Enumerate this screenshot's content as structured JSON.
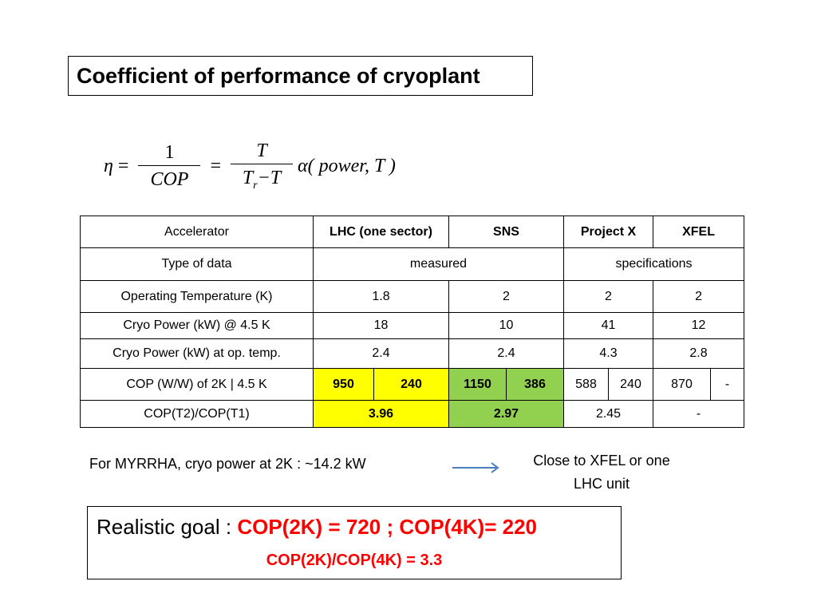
{
  "title": "Coefficient of performance of cryoplant",
  "formula": {
    "lhs": "η",
    "eq": "=",
    "frac1_num": "1",
    "frac1_den": "COP",
    "frac2_num": "T",
    "frac2_den_base": "T",
    "frac2_den_sub": "r",
    "frac2_den_rest": "−T",
    "alpha": "α",
    "alpha_args": "( power, T )"
  },
  "table": {
    "header": {
      "label": "Accelerator",
      "lhc": "LHC (one sector)",
      "sns": "SNS",
      "projectx": "Project X",
      "xfel": "XFEL"
    },
    "type_row": {
      "label": "Type of data",
      "measured": "measured",
      "specifications": "specifications"
    },
    "temp_row": {
      "label": "Operating Temperature (K)",
      "lhc": "1.8",
      "sns": "2",
      "projectx": "2",
      "xfel": "2"
    },
    "power45_row": {
      "label": "Cryo Power (kW) @ 4.5 K",
      "lhc": "18",
      "sns": "10",
      "projectx": "41",
      "xfel": "12"
    },
    "powerop_row": {
      "label": "Cryo Power (kW) at op. temp.",
      "lhc": "2.4",
      "sns": "2.4",
      "projectx": "4.3",
      "xfel": "2.8"
    },
    "cop_row": {
      "label": "COP (W/W) of 2K | 4.5 K",
      "lhc_2k": "950",
      "lhc_45": "240",
      "sns_2k": "1150",
      "sns_45": "386",
      "px_2k": "588",
      "px_45": "240",
      "xfel_2k": "870",
      "xfel_45": "-"
    },
    "ratio_row": {
      "label": "COP(T2)/COP(T1)",
      "lhc": "3.96",
      "sns": "2.97",
      "projectx": "2.45",
      "xfel": "-"
    }
  },
  "myrrha_text": "For MYRRHA, cryo power at 2K :  ~14.2 kW",
  "close_note_line1": "Close to XFEL or one",
  "close_note_line2": "LHC unit",
  "goal": {
    "prefix": "Realistic goal : ",
    "main": "COP(2K) = 720  ; COP(4K)= 220",
    "ratio": "COP(2K)/COP(4K) = 3.3"
  },
  "colors": {
    "highlight_yellow": "#ffff00",
    "highlight_green": "#92d050",
    "goal_red": "#ff0000",
    "arrow_blue": "#4a7ebb"
  }
}
